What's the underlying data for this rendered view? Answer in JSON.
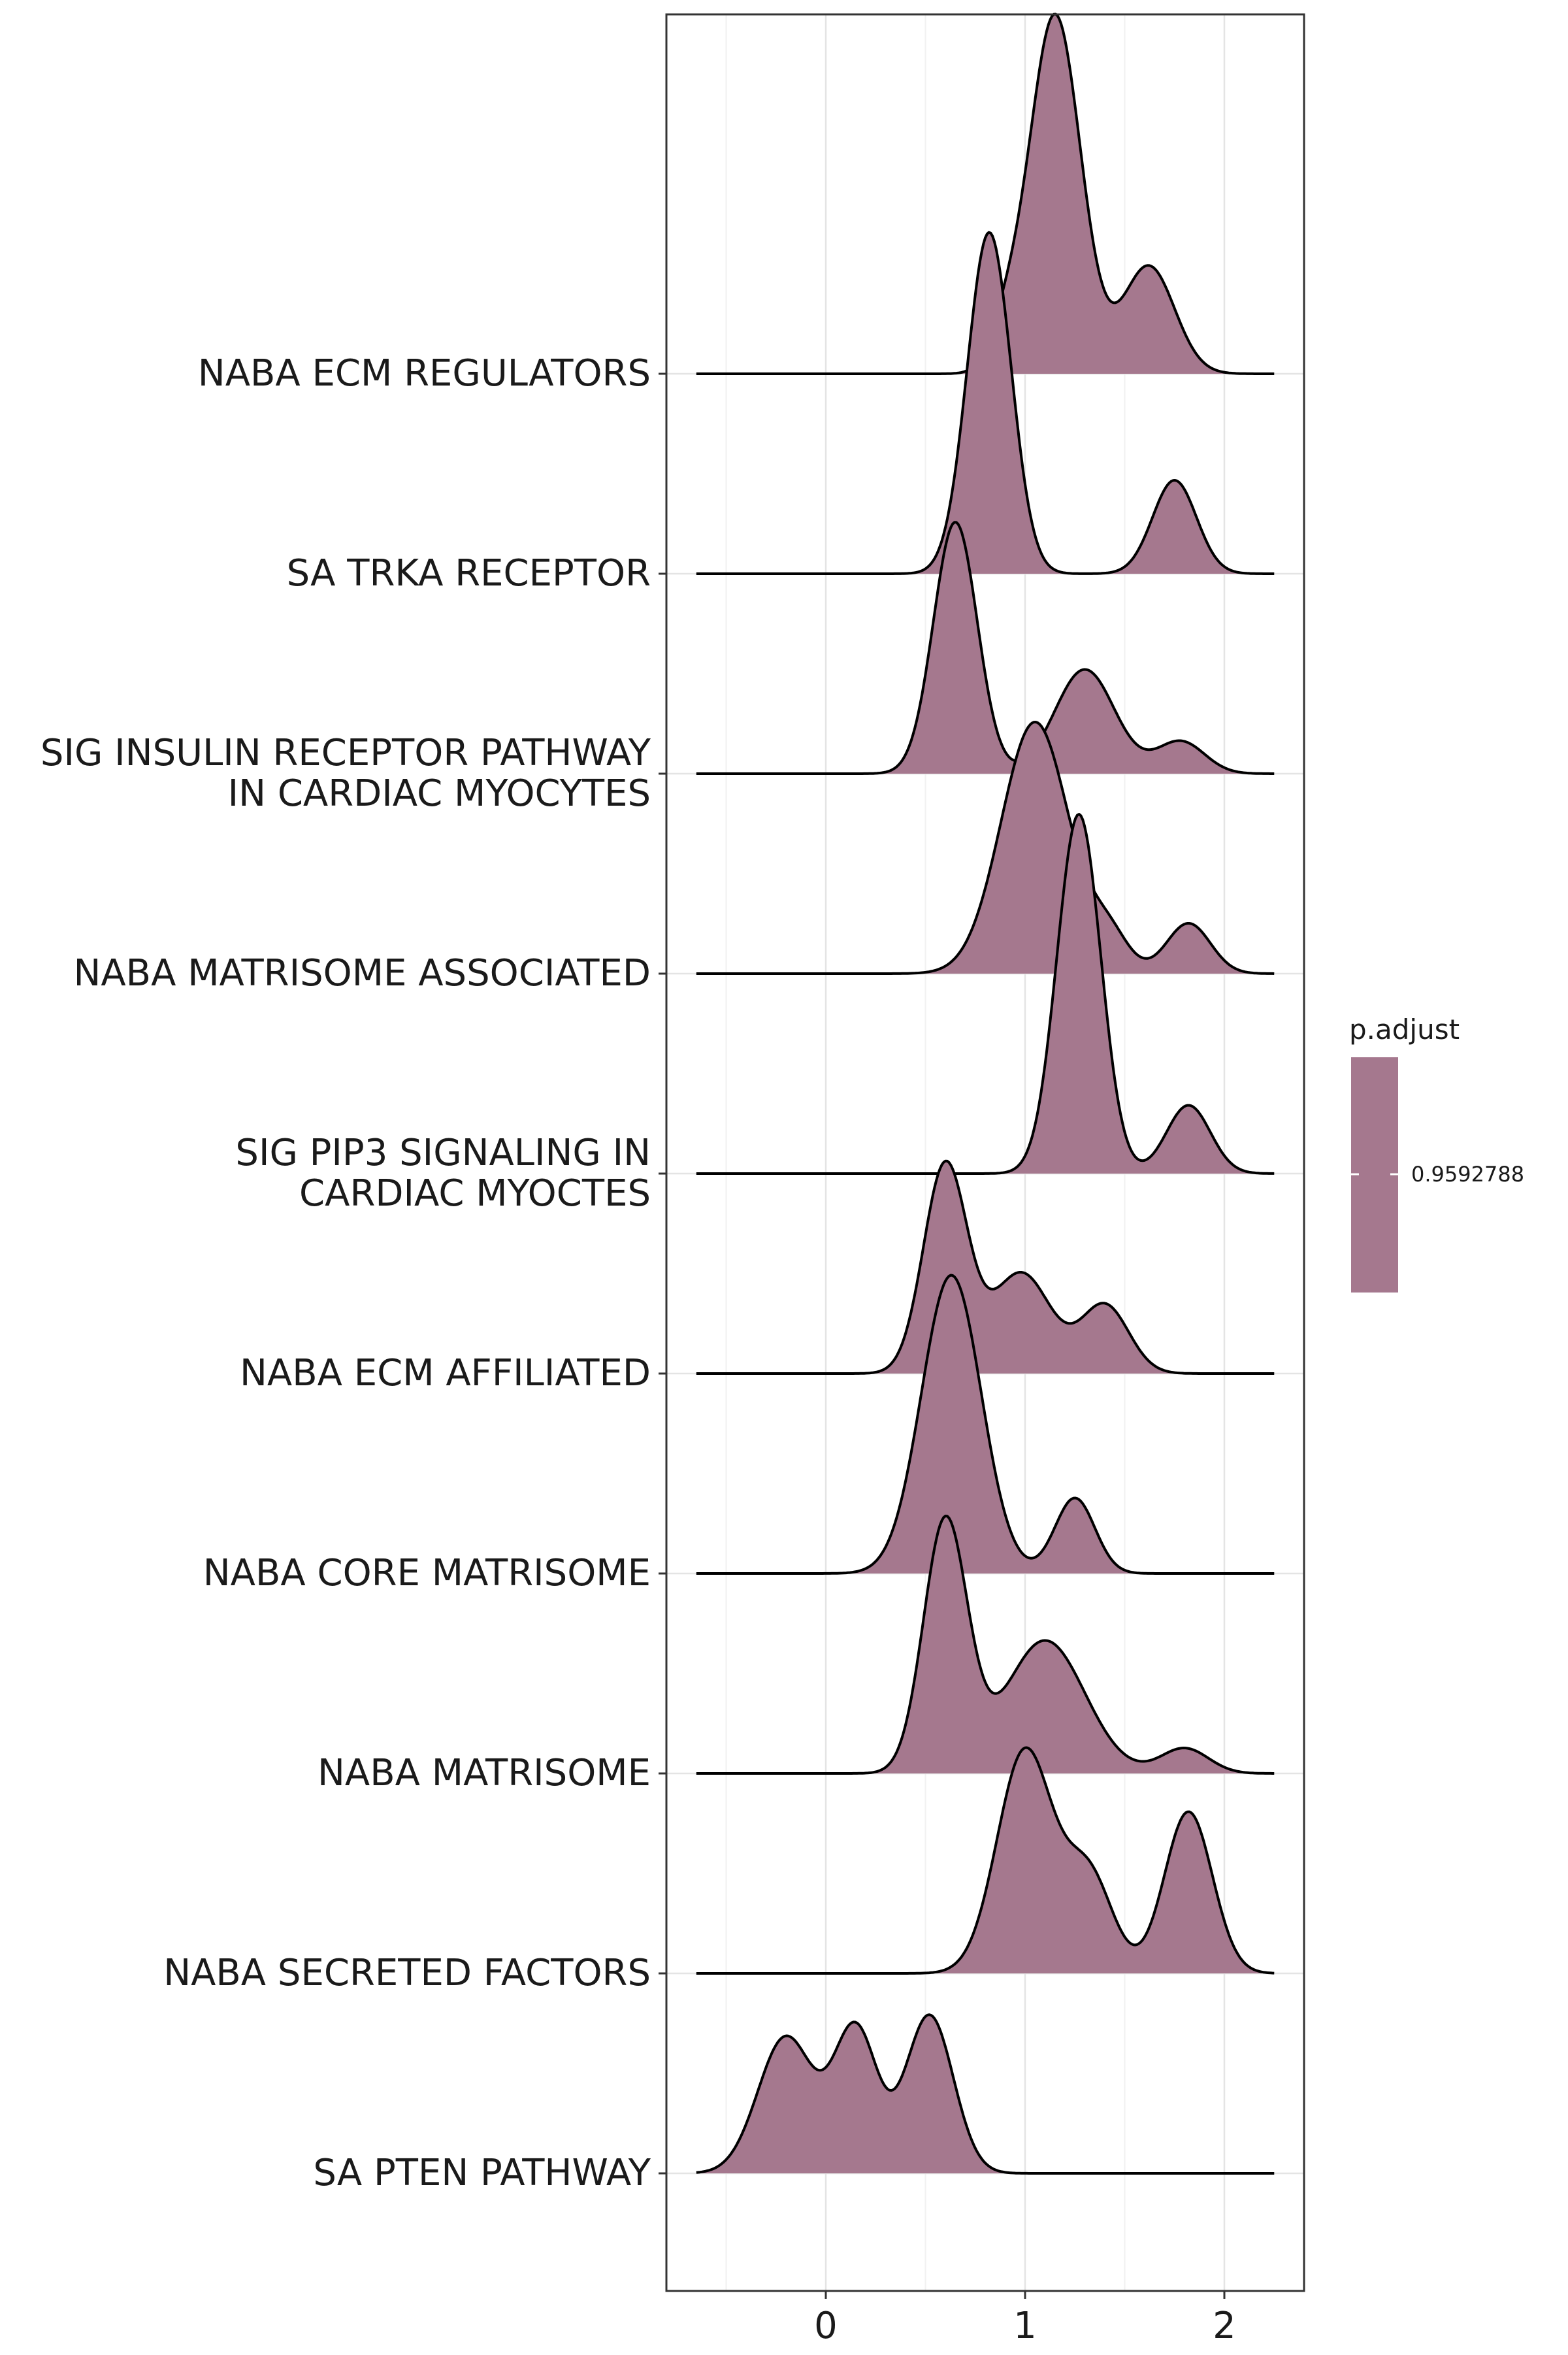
{
  "chart_data": {
    "type": "ridgeline",
    "xlim": [
      -0.8,
      2.4
    ],
    "xticks": [
      {
        "value": 0,
        "label": "0"
      },
      {
        "value": 1,
        "label": "1"
      },
      {
        "value": 2,
        "label": "2"
      }
    ],
    "fill_color": "#A5788E",
    "line_color": "#000000",
    "grid": true,
    "legend": {
      "title": "p.adjust",
      "label": "0.9592788",
      "placement": "right"
    },
    "series": [
      {
        "name": "NABA ECM REGULATORS",
        "label_lines": [
          "NABA ECM REGULATORS"
        ],
        "range": [
          -0.65,
          2.25
        ],
        "peaks": [
          {
            "mu": 1.15,
            "sd": 0.13,
            "h": 1.0
          },
          {
            "mu": 1.62,
            "sd": 0.13,
            "h": 0.3
          },
          {
            "mu": 0.9,
            "sd": 0.08,
            "h": 0.1
          }
        ]
      },
      {
        "name": "SA TRKA RECEPTOR",
        "label_lines": [
          "SA TRKA RECEPTOR"
        ],
        "range": [
          -0.65,
          2.25
        ],
        "peaks": [
          {
            "mu": 0.82,
            "sd": 0.11,
            "h": 0.95
          },
          {
            "mu": 1.75,
            "sd": 0.11,
            "h": 0.26
          }
        ]
      },
      {
        "name": "SIG INSULIN RECEPTOR PATHWAY IN CARDIAC MYOCYTES",
        "label_lines": [
          "SIG INSULIN RECEPTOR PATHWAY",
          "IN CARDIAC MYOCYTES"
        ],
        "range": [
          -0.65,
          2.25
        ],
        "peaks": [
          {
            "mu": 0.65,
            "sd": 0.11,
            "h": 0.7
          },
          {
            "mu": 1.3,
            "sd": 0.15,
            "h": 0.29
          },
          {
            "mu": 1.78,
            "sd": 0.12,
            "h": 0.09
          }
        ]
      },
      {
        "name": "NABA MATRISOME ASSOCIATED",
        "label_lines": [
          "NABA MATRISOME ASSOCIATED"
        ],
        "range": [
          -0.65,
          2.25
        ],
        "peaks": [
          {
            "mu": 1.05,
            "sd": 0.17,
            "h": 0.7
          },
          {
            "mu": 1.42,
            "sd": 0.1,
            "h": 0.1
          },
          {
            "mu": 1.82,
            "sd": 0.11,
            "h": 0.14
          }
        ]
      },
      {
        "name": "SIG PIP3 SIGNALING IN CARDIAC MYOCTES",
        "label_lines": [
          "SIG PIP3 SIGNALING IN",
          "CARDIAC MYOCTES"
        ],
        "range": [
          -0.65,
          2.25
        ],
        "peaks": [
          {
            "mu": 1.27,
            "sd": 0.11,
            "h": 1.0
          },
          {
            "mu": 1.82,
            "sd": 0.11,
            "h": 0.19
          }
        ]
      },
      {
        "name": "NABA ECM AFFILIATED",
        "label_lines": [
          "NABA ECM AFFILIATED"
        ],
        "range": [
          -0.65,
          2.25
        ],
        "peaks": [
          {
            "mu": 0.6,
            "sd": 0.11,
            "h": 0.58
          },
          {
            "mu": 0.98,
            "sd": 0.15,
            "h": 0.28
          },
          {
            "mu": 1.4,
            "sd": 0.12,
            "h": 0.19
          }
        ]
      },
      {
        "name": "NABA CORE MATRISOME",
        "label_lines": [
          "NABA CORE MATRISOME"
        ],
        "range": [
          -0.65,
          2.25
        ],
        "peaks": [
          {
            "mu": 0.63,
            "sd": 0.15,
            "h": 0.83
          },
          {
            "mu": 1.25,
            "sd": 0.1,
            "h": 0.21
          }
        ]
      },
      {
        "name": "NABA MATRISOME",
        "label_lines": [
          "NABA MATRISOME"
        ],
        "range": [
          -0.65,
          2.25
        ],
        "peaks": [
          {
            "mu": 0.6,
            "sd": 0.11,
            "h": 0.7
          },
          {
            "mu": 1.1,
            "sd": 0.2,
            "h": 0.37
          },
          {
            "mu": 1.8,
            "sd": 0.12,
            "h": 0.07
          }
        ]
      },
      {
        "name": "NABA SECRETED FACTORS",
        "label_lines": [
          "NABA SECRETED FACTORS"
        ],
        "range": [
          -0.65,
          2.25
        ],
        "peaks": [
          {
            "mu": 1.0,
            "sd": 0.14,
            "h": 0.62
          },
          {
            "mu": 1.32,
            "sd": 0.12,
            "h": 0.27
          },
          {
            "mu": 1.82,
            "sd": 0.12,
            "h": 0.45
          }
        ]
      },
      {
        "name": "SA PTEN PATHWAY",
        "label_lines": [
          "SA PTEN PATHWAY"
        ],
        "range": [
          -0.65,
          2.25
        ],
        "peaks": [
          {
            "mu": -0.2,
            "sd": 0.14,
            "h": 0.38
          },
          {
            "mu": 0.15,
            "sd": 0.11,
            "h": 0.4
          },
          {
            "mu": 0.52,
            "sd": 0.12,
            "h": 0.44
          }
        ]
      }
    ]
  }
}
